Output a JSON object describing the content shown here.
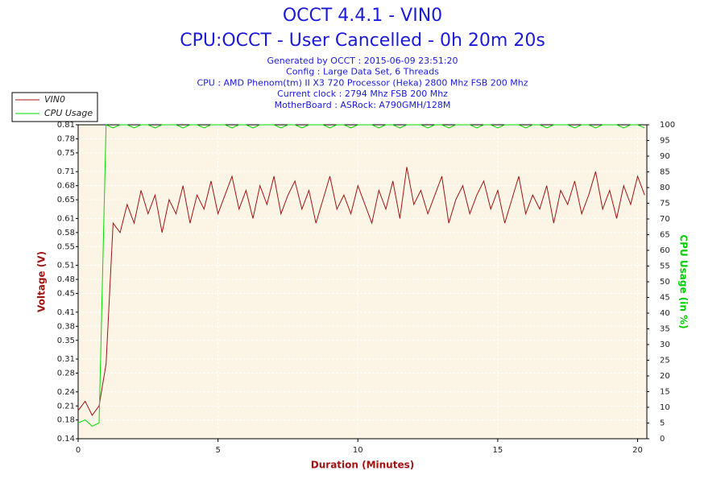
{
  "chart_data": {
    "type": "line",
    "title": "OCCT 4.4.1 - VIN0",
    "subtitle": "CPU:OCCT - User Cancelled - 0h 20m 20s",
    "info": [
      "Generated by OCCT : 2015-06-09 23:51:20",
      "Config : Large Data Set, 6 Threads",
      "CPU : AMD Phenom(tm) II X3 720 Processor (Heka) 2800 Mhz FSB 200 Mhz",
      "Current clock : 2794 Mhz FSB 200 Mhz",
      "MotherBoard : ASRock: A790GMH/128M"
    ],
    "xlabel": "Duration (Minutes)",
    "ylabel": "Voltage (V)",
    "y2label": "CPU Usage (in %)",
    "xlim": [
      0,
      20.33
    ],
    "xticks": [
      0,
      5,
      10,
      15,
      20
    ],
    "ylim": [
      0.14,
      0.81
    ],
    "yticks": [
      0.14,
      0.18,
      0.21,
      0.24,
      0.28,
      0.31,
      0.35,
      0.38,
      0.41,
      0.45,
      0.48,
      0.51,
      0.55,
      0.58,
      0.61,
      0.65,
      0.68,
      0.71,
      0.75,
      0.78,
      0.81
    ],
    "y2lim": [
      0,
      100
    ],
    "y2ticks": [
      0,
      5,
      10,
      15,
      20,
      25,
      30,
      35,
      40,
      45,
      50,
      55,
      60,
      65,
      70,
      75,
      80,
      85,
      90,
      95,
      100
    ],
    "grid": true,
    "legend": "top-left",
    "x": [
      0,
      0.25,
      0.5,
      0.75,
      1,
      1.25,
      1.5,
      1.75,
      2,
      2.25,
      2.5,
      2.75,
      3,
      3.25,
      3.5,
      3.75,
      4,
      4.25,
      4.5,
      4.75,
      5,
      5.25,
      5.5,
      5.75,
      6,
      6.25,
      6.5,
      6.75,
      7,
      7.25,
      7.5,
      7.75,
      8,
      8.25,
      8.5,
      8.75,
      9,
      9.25,
      9.5,
      9.75,
      10,
      10.25,
      10.5,
      10.75,
      11,
      11.25,
      11.5,
      11.75,
      12,
      12.25,
      12.5,
      12.75,
      13,
      13.25,
      13.5,
      13.75,
      14,
      14.25,
      14.5,
      14.75,
      15,
      15.25,
      15.5,
      15.75,
      16,
      16.25,
      16.5,
      16.75,
      17,
      17.25,
      17.5,
      17.75,
      18,
      18.25,
      18.5,
      18.75,
      19,
      19.25,
      19.5,
      19.75,
      20,
      20.25
    ],
    "series": [
      {
        "name": "VIN0",
        "color": "#a01414",
        "values": [
          0.2,
          0.22,
          0.19,
          0.21,
          0.3,
          0.6,
          0.58,
          0.64,
          0.6,
          0.67,
          0.62,
          0.66,
          0.58,
          0.65,
          0.62,
          0.68,
          0.6,
          0.66,
          0.63,
          0.69,
          0.62,
          0.66,
          0.7,
          0.63,
          0.67,
          0.61,
          0.68,
          0.64,
          0.7,
          0.62,
          0.66,
          0.69,
          0.63,
          0.67,
          0.6,
          0.65,
          0.7,
          0.63,
          0.66,
          0.62,
          0.68,
          0.64,
          0.6,
          0.67,
          0.63,
          0.69,
          0.61,
          0.72,
          0.64,
          0.67,
          0.62,
          0.66,
          0.7,
          0.6,
          0.65,
          0.68,
          0.62,
          0.66,
          0.69,
          0.63,
          0.67,
          0.6,
          0.65,
          0.7,
          0.62,
          0.66,
          0.63,
          0.68,
          0.6,
          0.67,
          0.64,
          0.69,
          0.62,
          0.66,
          0.71,
          0.63,
          0.67,
          0.61,
          0.68,
          0.64,
          0.7,
          0.66
        ]
      },
      {
        "name": "CPU Usage",
        "color": "#00dd00",
        "axis": "y2",
        "values": [
          5,
          6,
          4,
          5,
          100,
          99,
          100,
          100,
          99,
          100,
          100,
          99,
          100,
          100,
          100,
          99,
          100,
          100,
          99,
          100,
          100,
          100,
          99,
          100,
          100,
          99,
          100,
          100,
          100,
          99,
          100,
          100,
          99,
          100,
          100,
          100,
          99,
          100,
          100,
          99,
          100,
          100,
          100,
          99,
          100,
          100,
          99,
          100,
          100,
          100,
          99,
          100,
          100,
          99,
          100,
          100,
          100,
          99,
          100,
          100,
          99,
          100,
          100,
          100,
          99,
          100,
          100,
          99,
          100,
          100,
          100,
          99,
          100,
          100,
          99,
          100,
          100,
          100,
          99,
          100,
          100,
          99
        ]
      }
    ]
  }
}
